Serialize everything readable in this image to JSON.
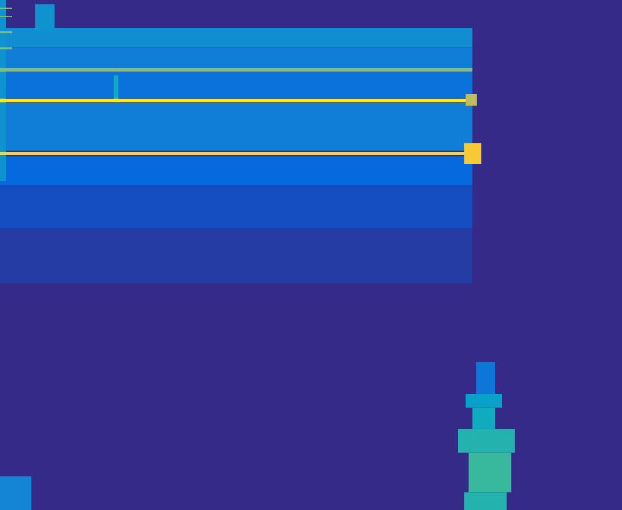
{
  "chart_data": {
    "type": "heatmap",
    "xlim": [
      0,
      100
    ],
    "ylim": [
      0,
      100
    ],
    "tick_labels": false,
    "grid": false,
    "zlim": [
      0,
      1
    ],
    "cells": [
      [
        0,
        100,
        0,
        100,
        0
      ],
      [
        0,
        75.9,
        44.4,
        55.2,
        0.04
      ],
      [
        0,
        75.9,
        55.2,
        63.7,
        0.08
      ],
      [
        0,
        75.9,
        63.7,
        69.4,
        0.15
      ],
      [
        0,
        75.9,
        70.4,
        79.8,
        0.22
      ],
      [
        0,
        75.9,
        80.7,
        85.8,
        0.18
      ],
      [
        0,
        75.9,
        86.4,
        90.7,
        0.22
      ],
      [
        0,
        75.9,
        90.7,
        94.6,
        0.28
      ],
      [
        0,
        1.0,
        64.5,
        100,
        0.3
      ],
      [
        5.7,
        8.8,
        93.8,
        99.2,
        0.3
      ],
      [
        18.3,
        19.0,
        79.9,
        85.3,
        0.4
      ],
      [
        0,
        1.9,
        98.2,
        98.5,
        0.6
      ],
      [
        0,
        1.9,
        96.6,
        96.9,
        0.6
      ],
      [
        0,
        1.9,
        93.5,
        93.8,
        0.6
      ],
      [
        0,
        1.9,
        90.4,
        90.7,
        0.6
      ],
      [
        0,
        75.9,
        86.0,
        86.6,
        0.6
      ],
      [
        0,
        75.9,
        79.9,
        80.6,
        0.95
      ],
      [
        0,
        75.9,
        69.6,
        70.2,
        0.9
      ],
      [
        74.8,
        76.6,
        79.2,
        81.5,
        0.7
      ],
      [
        74.6,
        77.4,
        67.9,
        71.9,
        0.85
      ],
      [
        76.5,
        79.6,
        22.8,
        29.0,
        0.2
      ],
      [
        74.8,
        80.7,
        20.1,
        22.8,
        0.35
      ],
      [
        75.9,
        79.6,
        15.9,
        20.1,
        0.4
      ],
      [
        73.6,
        82.8,
        11.3,
        15.9,
        0.45
      ],
      [
        75.3,
        82.2,
        3.5,
        11.3,
        0.5
      ],
      [
        74.6,
        81.5,
        0,
        3.5,
        0.45
      ],
      [
        0,
        5.1,
        0,
        6.6,
        0.25
      ]
    ]
  }
}
